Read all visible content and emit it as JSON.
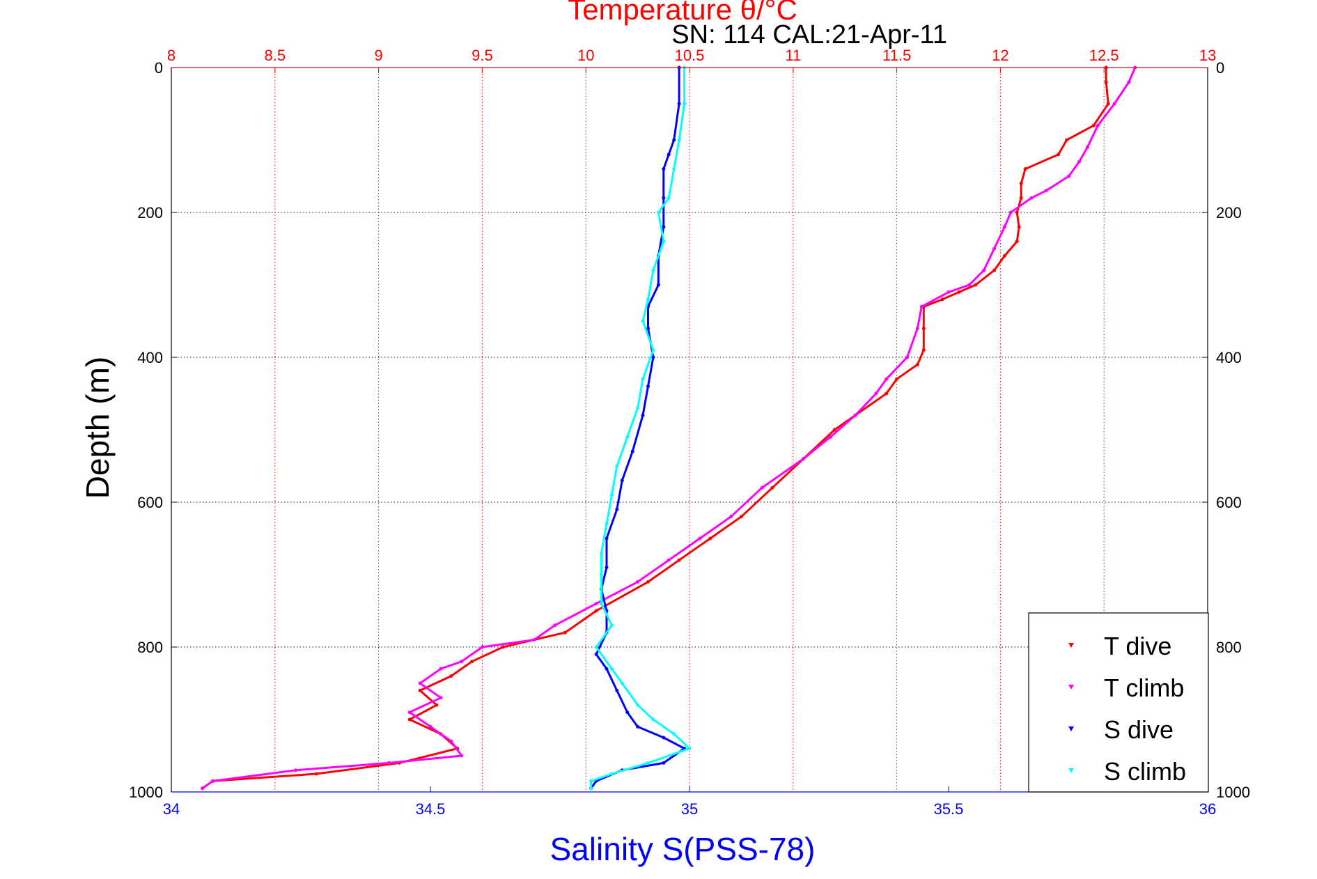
{
  "chart_data": {
    "type": "scatter",
    "title": "Temperature θ/°C",
    "subtitle": "SN: 114  CAL:21-Apr-11",
    "xlabel": "Salinity S(PSS-78)",
    "ylabel": "Depth (m)",
    "top_axis": {
      "label": "Temperature θ/°C",
      "range": [
        8,
        13
      ],
      "ticks": [
        "8",
        "8.5",
        "9",
        "9.5",
        "10",
        "10.5",
        "11",
        "11.5",
        "12",
        "12.5",
        "13"
      ],
      "color": "#ff0000",
      "grid": "vertical dotted red"
    },
    "bottom_axis": {
      "label": "Salinity S(PSS-78)",
      "range": [
        34,
        36
      ],
      "ticks": [
        "34",
        "34.5",
        "35",
        "35.5",
        "36"
      ],
      "color": "#0000ff"
    },
    "y_axis": {
      "label": "Depth (m)",
      "range": [
        0,
        1000
      ],
      "reversed": true,
      "ticks": [
        "0",
        "200",
        "400",
        "600",
        "800",
        "1000"
      ],
      "grid": "horizontal dotted black"
    },
    "legend": {
      "position": "bottom-right",
      "entries": [
        "T dive",
        "T climb",
        "S dive",
        "S climb"
      ]
    },
    "series": [
      {
        "name": "T dive",
        "axis": "temperature",
        "color": "#ff0000",
        "points": [
          [
            12.51,
            0
          ],
          [
            12.51,
            20
          ],
          [
            12.52,
            50
          ],
          [
            12.45,
            80
          ],
          [
            12.32,
            100
          ],
          [
            12.28,
            120
          ],
          [
            12.12,
            140
          ],
          [
            12.1,
            160
          ],
          [
            12.1,
            180
          ],
          [
            12.08,
            200
          ],
          [
            12.09,
            220
          ],
          [
            12.08,
            240
          ],
          [
            12.02,
            260
          ],
          [
            11.97,
            280
          ],
          [
            11.88,
            300
          ],
          [
            11.8,
            310
          ],
          [
            11.72,
            320
          ],
          [
            11.63,
            330
          ],
          [
            11.63,
            360
          ],
          [
            11.63,
            390
          ],
          [
            11.6,
            410
          ],
          [
            11.5,
            430
          ],
          [
            11.45,
            450
          ],
          [
            11.3,
            480
          ],
          [
            11.2,
            500
          ],
          [
            11.05,
            540
          ],
          [
            10.9,
            580
          ],
          [
            10.75,
            620
          ],
          [
            10.6,
            650
          ],
          [
            10.45,
            680
          ],
          [
            10.3,
            710
          ],
          [
            10.05,
            750
          ],
          [
            9.9,
            780
          ],
          [
            9.6,
            800
          ],
          [
            9.45,
            820
          ],
          [
            9.35,
            840
          ],
          [
            9.2,
            860
          ],
          [
            9.28,
            880
          ],
          [
            9.15,
            900
          ],
          [
            9.3,
            920
          ],
          [
            9.38,
            940
          ],
          [
            9.1,
            960
          ],
          [
            8.7,
            975
          ],
          [
            8.2,
            985
          ],
          [
            8.15,
            995
          ]
        ]
      },
      {
        "name": "T climb",
        "axis": "temperature",
        "color": "#ff00ff",
        "points": [
          [
            12.65,
            0
          ],
          [
            12.62,
            20
          ],
          [
            12.55,
            50
          ],
          [
            12.47,
            80
          ],
          [
            12.42,
            110
          ],
          [
            12.38,
            130
          ],
          [
            12.33,
            150
          ],
          [
            12.22,
            170
          ],
          [
            12.15,
            180
          ],
          [
            12.05,
            200
          ],
          [
            12.02,
            220
          ],
          [
            11.97,
            250
          ],
          [
            11.92,
            280
          ],
          [
            11.85,
            300
          ],
          [
            11.75,
            310
          ],
          [
            11.62,
            330
          ],
          [
            11.6,
            360
          ],
          [
            11.55,
            400
          ],
          [
            11.45,
            430
          ],
          [
            11.4,
            450
          ],
          [
            11.3,
            480
          ],
          [
            11.18,
            510
          ],
          [
            11.05,
            540
          ],
          [
            10.85,
            580
          ],
          [
            10.7,
            620
          ],
          [
            10.55,
            650
          ],
          [
            10.4,
            680
          ],
          [
            10.25,
            710
          ],
          [
            10.05,
            740
          ],
          [
            9.85,
            770
          ],
          [
            9.75,
            790
          ],
          [
            9.5,
            800
          ],
          [
            9.4,
            820
          ],
          [
            9.3,
            830
          ],
          [
            9.2,
            850
          ],
          [
            9.3,
            870
          ],
          [
            9.15,
            890
          ],
          [
            9.25,
            910
          ],
          [
            9.35,
            930
          ],
          [
            9.4,
            950
          ],
          [
            9.05,
            960
          ],
          [
            8.6,
            970
          ],
          [
            8.2,
            985
          ],
          [
            8.15,
            995
          ]
        ]
      },
      {
        "name": "S dive",
        "axis": "salinity",
        "color": "#0000ff",
        "points": [
          [
            34.98,
            0
          ],
          [
            34.98,
            50
          ],
          [
            34.97,
            100
          ],
          [
            34.96,
            120
          ],
          [
            34.95,
            140
          ],
          [
            34.95,
            180
          ],
          [
            34.95,
            220
          ],
          [
            34.94,
            260
          ],
          [
            34.94,
            300
          ],
          [
            34.92,
            330
          ],
          [
            34.92,
            360
          ],
          [
            34.93,
            400
          ],
          [
            34.92,
            440
          ],
          [
            34.91,
            480
          ],
          [
            34.89,
            530
          ],
          [
            34.87,
            570
          ],
          [
            34.86,
            610
          ],
          [
            34.84,
            650
          ],
          [
            34.84,
            690
          ],
          [
            34.83,
            720
          ],
          [
            34.84,
            750
          ],
          [
            34.84,
            780
          ],
          [
            34.82,
            810
          ],
          [
            34.84,
            830
          ],
          [
            34.86,
            860
          ],
          [
            34.88,
            890
          ],
          [
            34.9,
            910
          ],
          [
            34.95,
            925
          ],
          [
            34.99,
            940
          ],
          [
            34.95,
            960
          ],
          [
            34.87,
            970
          ],
          [
            34.82,
            985
          ],
          [
            34.81,
            995
          ]
        ]
      },
      {
        "name": "S climb",
        "axis": "salinity",
        "color": "#00ffff",
        "points": [
          [
            34.99,
            0
          ],
          [
            34.99,
            50
          ],
          [
            34.98,
            100
          ],
          [
            34.97,
            140
          ],
          [
            34.96,
            180
          ],
          [
            34.94,
            200
          ],
          [
            34.95,
            240
          ],
          [
            34.93,
            280
          ],
          [
            34.92,
            320
          ],
          [
            34.91,
            350
          ],
          [
            34.93,
            390
          ],
          [
            34.91,
            430
          ],
          [
            34.9,
            470
          ],
          [
            34.88,
            510
          ],
          [
            34.86,
            550
          ],
          [
            34.85,
            590
          ],
          [
            34.84,
            630
          ],
          [
            34.83,
            670
          ],
          [
            34.83,
            700
          ],
          [
            34.83,
            740
          ],
          [
            34.85,
            770
          ],
          [
            34.82,
            800
          ],
          [
            34.85,
            830
          ],
          [
            34.87,
            850
          ],
          [
            34.9,
            880
          ],
          [
            34.93,
            900
          ],
          [
            34.97,
            920
          ],
          [
            35.0,
            940
          ],
          [
            34.92,
            960
          ],
          [
            34.85,
            975
          ],
          [
            34.81,
            985
          ],
          [
            34.81,
            995
          ]
        ]
      }
    ]
  }
}
